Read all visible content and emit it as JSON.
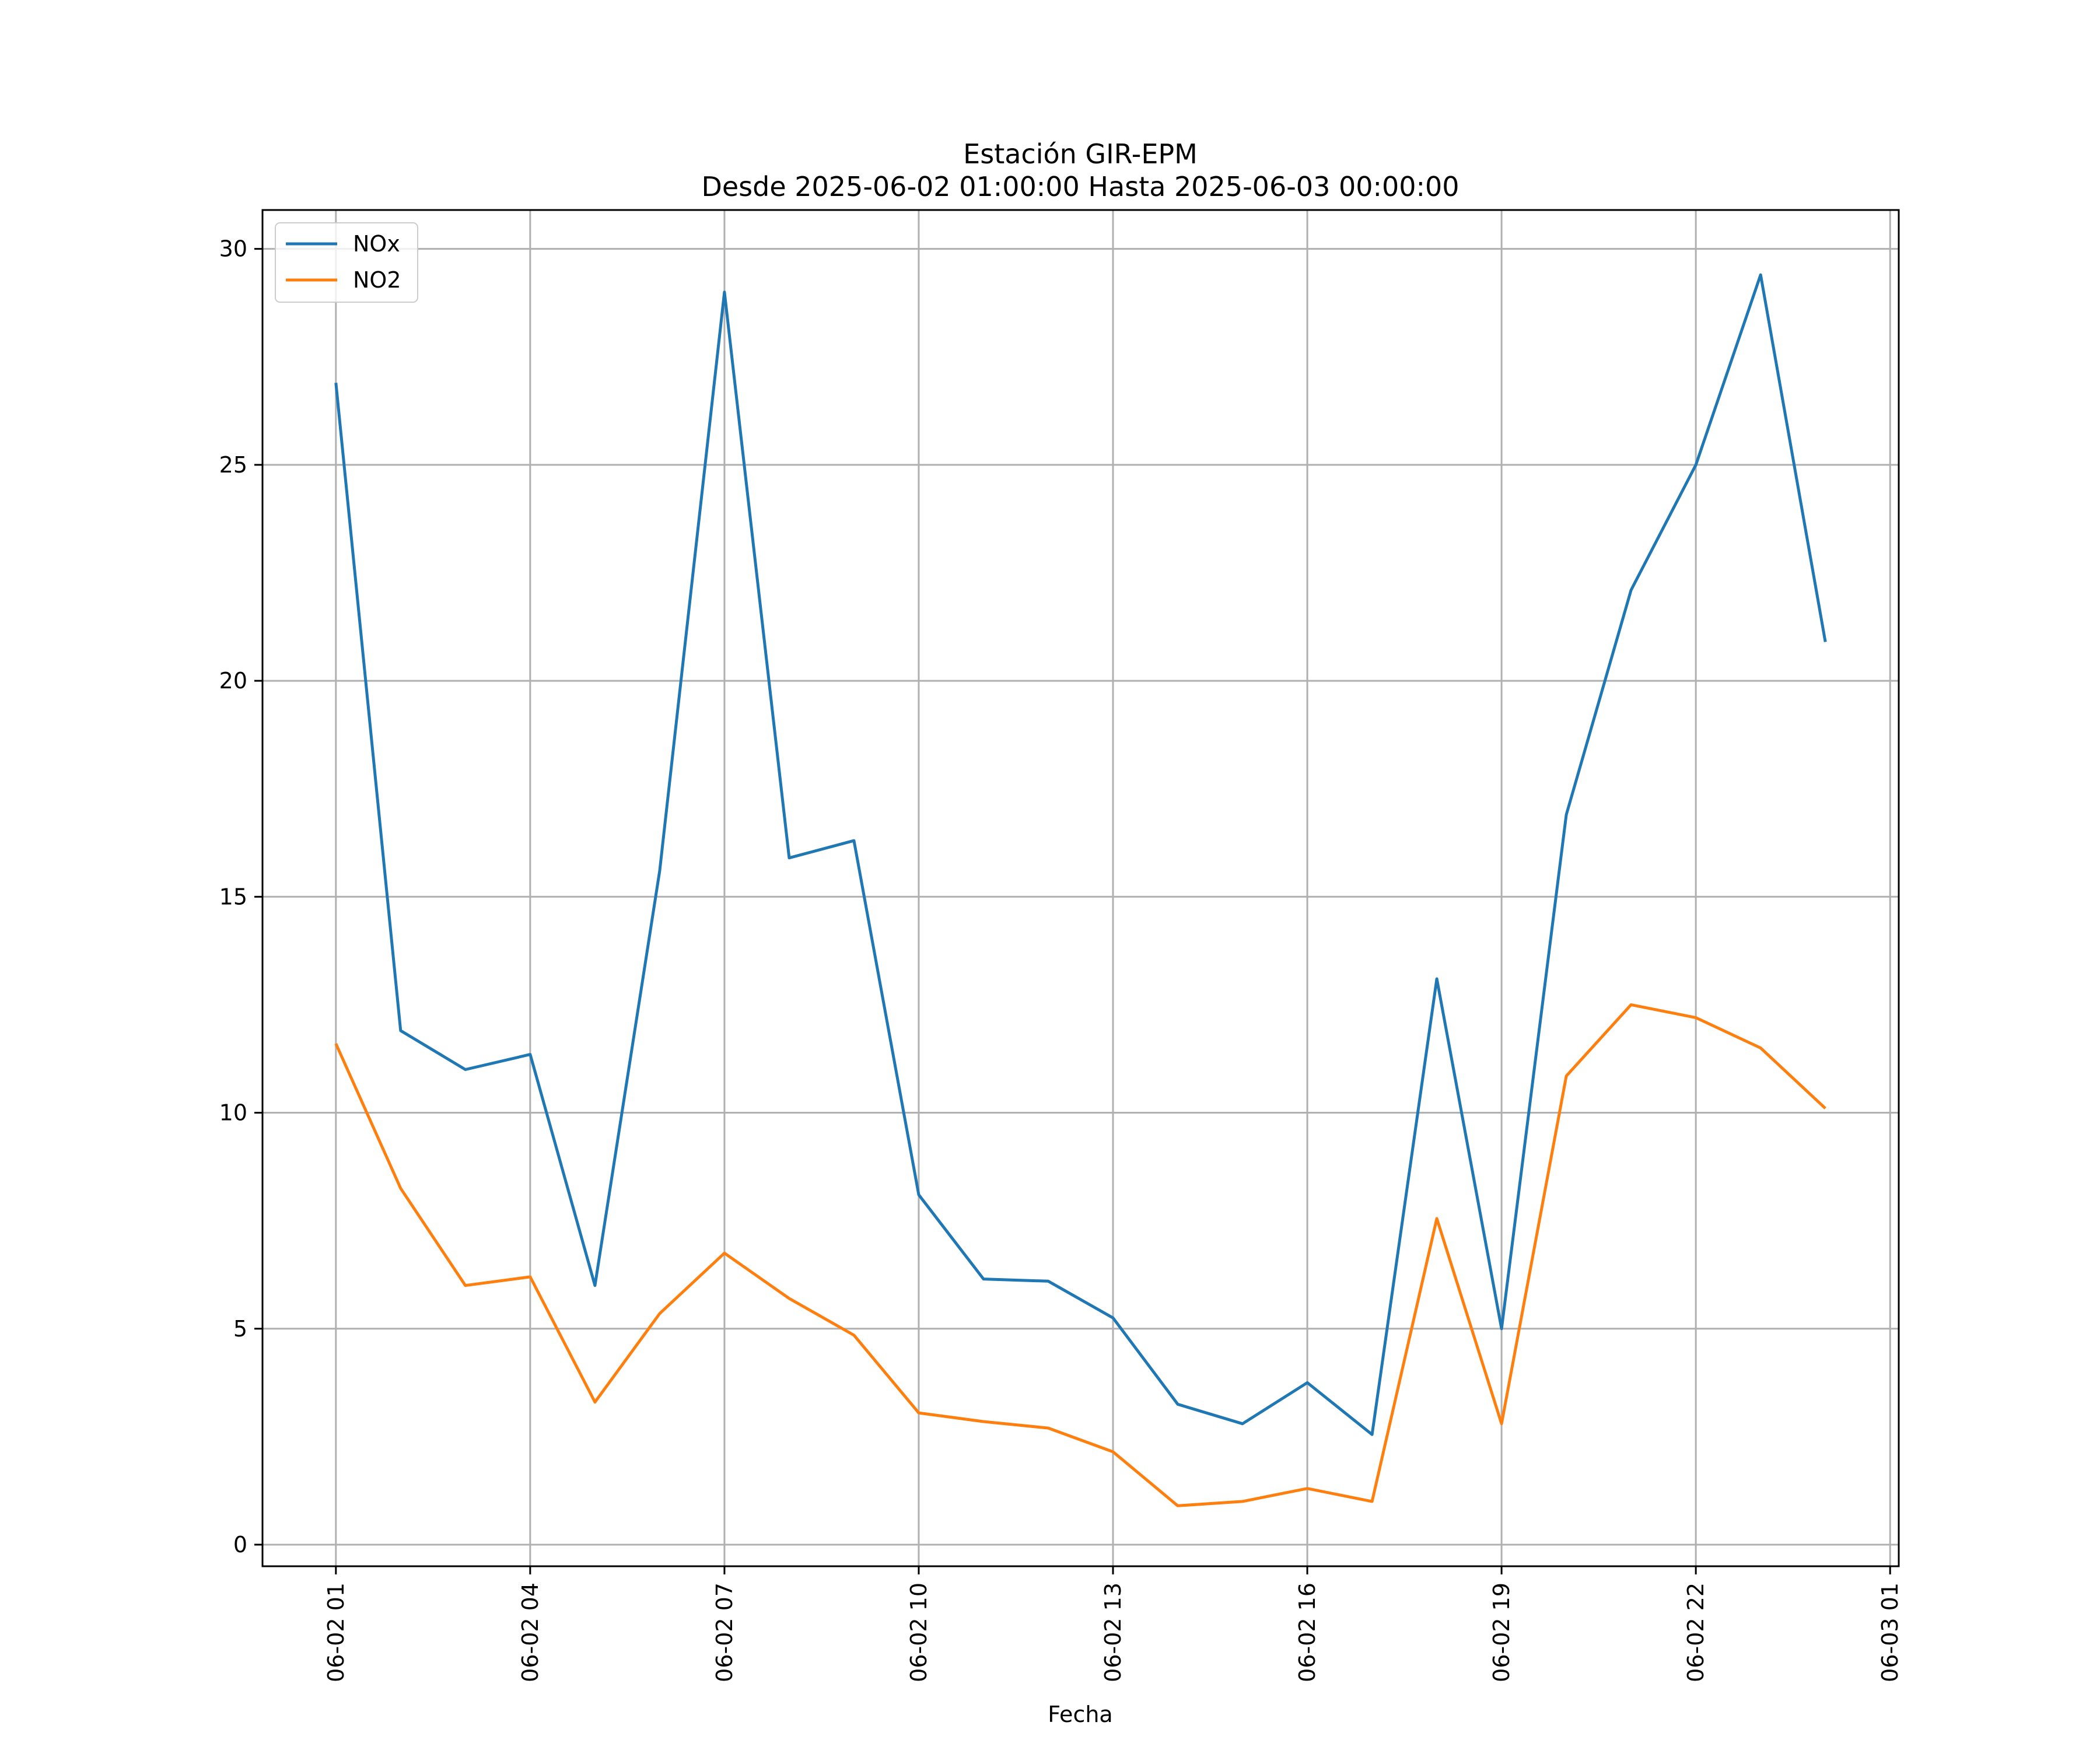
{
  "chart_data": {
    "type": "line",
    "title": "Estación GIR-EPM",
    "subtitle": "Desde 2025-06-02 01:00:00 Hasta 2025-06-03 00:00:00",
    "xlabel": "Fecha",
    "ylabel": "",
    "x": [
      "2025-06-02 01:00",
      "2025-06-02 02:00",
      "2025-06-02 03:00",
      "2025-06-02 04:00",
      "2025-06-02 05:00",
      "2025-06-02 06:00",
      "2025-06-02 07:00",
      "2025-06-02 08:00",
      "2025-06-02 09:00",
      "2025-06-02 10:00",
      "2025-06-02 11:00",
      "2025-06-02 12:00",
      "2025-06-02 13:00",
      "2025-06-02 14:00",
      "2025-06-02 15:00",
      "2025-06-02 16:00",
      "2025-06-02 17:00",
      "2025-06-02 18:00",
      "2025-06-02 19:00",
      "2025-06-02 20:00",
      "2025-06-02 21:00",
      "2025-06-02 22:00",
      "2025-06-02 23:00",
      "2025-06-03 00:00"
    ],
    "series": [
      {
        "name": "NOx",
        "color": "#1f77b4",
        "values": [
          26.9,
          11.9,
          11.0,
          11.35,
          6.0,
          15.6,
          29.0,
          15.9,
          16.3,
          8.1,
          6.15,
          6.1,
          5.25,
          3.25,
          2.8,
          3.75,
          2.55,
          13.1,
          5.0,
          16.9,
          22.1,
          25.0,
          29.4,
          20.9
        ]
      },
      {
        "name": "NO2",
        "color": "#ff7f0e",
        "values": [
          11.6,
          8.25,
          6.0,
          6.2,
          3.3,
          5.35,
          6.75,
          5.7,
          4.85,
          3.05,
          2.85,
          2.7,
          2.15,
          0.9,
          1.0,
          1.3,
          1.0,
          7.55,
          2.8,
          10.85,
          12.5,
          12.2,
          11.5,
          10.1
        ]
      }
    ],
    "x_ticks": [
      "06-02 01",
      "06-02 04",
      "06-02 07",
      "06-02 10",
      "06-02 13",
      "06-02 16",
      "06-02 19",
      "06-02 22",
      "06-03 01"
    ],
    "y_ticks": [
      "0",
      "5",
      "10",
      "15",
      "20",
      "25",
      "30"
    ],
    "xlim": [
      "2025-06-01 23:52",
      "2025-06-03 01:08"
    ],
    "ylim": [
      -0.5,
      30.9
    ],
    "grid": true,
    "legend_position": "top-left"
  }
}
